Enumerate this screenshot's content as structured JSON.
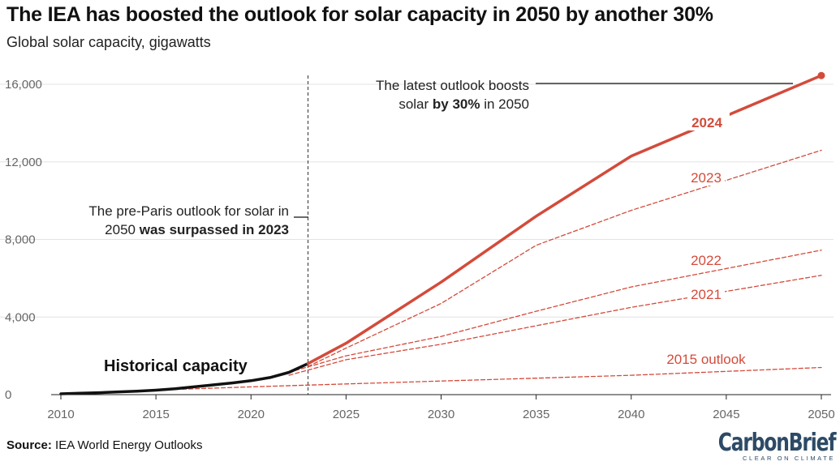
{
  "title": "The IEA has boosted the outlook for solar capacity in 2050 by another 30%",
  "subtitle": "Global solar capacity, gigawatts",
  "source_label": "Source:",
  "source_text": " IEA World Energy Outlooks",
  "logo": {
    "name": "CarbonBrief",
    "tagline": "CLEAR ON CLIMATE"
  },
  "colors": {
    "historical": "#111111",
    "outlook": "#d34b3b",
    "grid": "#e3e3e3"
  },
  "annotations": {
    "latest_line1": "The latest outlook boosts",
    "latest_line2_a": "solar ",
    "latest_line2_b": "by 30%",
    "latest_line2_c": " in 2050",
    "paris_line1": "The pre-Paris outlook for solar in",
    "paris_line2_a": "2050 ",
    "paris_line2_b": "was surpassed in 2023",
    "historical_label": "Historical capacity"
  },
  "chart_data": {
    "type": "line",
    "xlim": [
      2010,
      2050
    ],
    "ylim": [
      0,
      17000
    ],
    "x_ticks": [
      2010,
      2015,
      2020,
      2025,
      2030,
      2035,
      2040,
      2045,
      2050
    ],
    "y_ticks": [
      0,
      4000,
      8000,
      12000,
      16000
    ],
    "y_tick_labels": [
      "0",
      "4,000",
      "8,000",
      "12,000",
      "16,000"
    ],
    "grid": "horizontal",
    "series": [
      {
        "name": "Historical capacity",
        "style": "solid-black",
        "x": [
          2010,
          2011,
          2012,
          2013,
          2014,
          2015,
          2016,
          2017,
          2018,
          2019,
          2020,
          2021,
          2022,
          2023
        ],
        "y": [
          40,
          70,
          100,
          140,
          180,
          230,
          300,
          400,
          500,
          600,
          720,
          880,
          1150,
          1600
        ]
      },
      {
        "name": "2024",
        "style": "solid-red",
        "x": [
          2023,
          2025,
          2030,
          2035,
          2040,
          2050
        ],
        "y": [
          1600,
          2650,
          5800,
          9200,
          12300,
          16450
        ]
      },
      {
        "name": "2023",
        "style": "dashed-red",
        "x": [
          2023,
          2025,
          2030,
          2035,
          2040,
          2050
        ],
        "y": [
          1450,
          2400,
          4700,
          7700,
          9500,
          12600
        ]
      },
      {
        "name": "2022",
        "style": "dashed-red",
        "x": [
          2022,
          2025,
          2030,
          2035,
          2040,
          2050
        ],
        "y": [
          1150,
          2000,
          3000,
          4300,
          5550,
          7450
        ]
      },
      {
        "name": "2021",
        "style": "dashed-red",
        "x": [
          2022,
          2025,
          2030,
          2035,
          2040,
          2050
        ],
        "y": [
          1000,
          1800,
          2600,
          3550,
          4500,
          6150
        ]
      },
      {
        "name": "2015 outlook",
        "style": "dashed-red",
        "x": [
          2014,
          2020,
          2025,
          2030,
          2035,
          2040,
          2050
        ],
        "y": [
          200,
          400,
          550,
          700,
          850,
          1000,
          1400
        ]
      }
    ],
    "marked_years": [
      2023
    ]
  }
}
